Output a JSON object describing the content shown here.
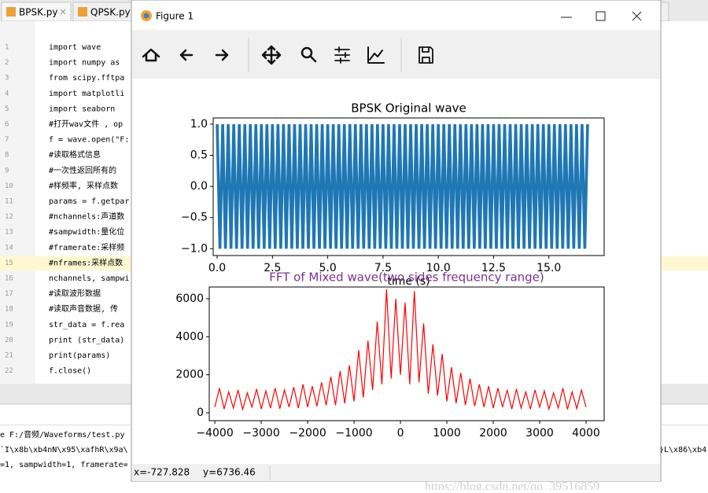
{
  "ide": {
    "tabs": [
      "BPSK.py",
      "QPSK.py"
    ],
    "code_lines": [
      {
        "number": "1",
        "text": "import wave"
      },
      {
        "number": "2",
        "text": "import numpy as"
      },
      {
        "number": "3",
        "text": "from scipy.fftpa"
      },
      {
        "number": "4",
        "text": "import matplotli"
      },
      {
        "number": "5",
        "text": "import seaborn"
      },
      {
        "number": "6",
        "text": "#打开wav文件 , op"
      },
      {
        "number": "7",
        "text": "f = wave.open(\"F:"
      },
      {
        "number": "8",
        "text": "#读取格式信息"
      },
      {
        "number": "9",
        "text": "#一次性返回所有的"
      },
      {
        "number": "10",
        "text": "#样频率, 采样点数"
      },
      {
        "number": "11",
        "text": "params = f.getpar"
      },
      {
        "number": "12",
        "text": "#nchannels:声道数"
      },
      {
        "number": "13",
        "text": "#sampwidth:量化位"
      },
      {
        "number": "14",
        "text": "#framerate:采样频"
      },
      {
        "number": "15",
        "text": "#nframes:采样点数"
      },
      {
        "number": "16",
        "text": "nchannels, sampwi"
      },
      {
        "number": "17",
        "text": "#读取波形数据"
      },
      {
        "number": "18",
        "text": "#读取声音数据, 传"
      },
      {
        "number": "19",
        "text": "str_data = f.rea"
      },
      {
        "number": "20",
        "text": "print (str_data)"
      },
      {
        "number": "21",
        "text": "print(params)"
      },
      {
        "number": "22",
        "text": "f.close()"
      }
    ],
    "console_lines": [
      "e F:/音频/Waveforms/test.py",
      "`I\\x8b\\xb4nN\\x95\\xafhR\\x9a\\",
      "=1, sampwidth=1, framerate="
    ],
    "console_right": "}L\\x86\\xb4",
    "watermark": "https://blog.csdn.net/qq_39516859"
  },
  "figure": {
    "title": "Figure 1",
    "status_x": "x=-727.828",
    "status_y": "y=6736.46"
  },
  "chart_data": [
    {
      "type": "line",
      "title": "BPSK Original wave",
      "x_label": "time (s)",
      "color": "#1f77b4",
      "xlim": [
        -0.18,
        17.5
      ],
      "ylim": [
        -1.11,
        1.1
      ],
      "xticks": [
        {
          "value": 0,
          "label": "0.0"
        },
        {
          "value": 2.5,
          "label": "2.5"
        },
        {
          "value": 5,
          "label": "5.0"
        },
        {
          "value": 7.5,
          "label": "7.5"
        },
        {
          "value": 10,
          "label": "10.0"
        },
        {
          "value": 12.5,
          "label": "12.5"
        },
        {
          "value": 15,
          "label": "15.0"
        }
      ],
      "yticks": [
        {
          "value": 1,
          "label": "1.0"
        },
        {
          "value": 0.5,
          "label": "0.5"
        },
        {
          "value": 0,
          "label": "0.0"
        },
        {
          "value": -0.5,
          "label": "−0.5"
        },
        {
          "value": -1,
          "label": "−1.0"
        }
      ],
      "x": [
        0,
        0.125,
        0.25,
        0.375,
        0.5,
        0.625,
        0.75,
        0.875,
        1,
        1.125,
        1.25,
        1.375,
        1.5,
        1.625,
        1.75,
        1.875,
        2,
        2.125,
        2.25,
        2.375,
        2.5,
        2.625,
        2.75,
        2.875,
        3,
        3.125,
        3.25,
        3.375,
        3.5,
        3.625,
        3.75,
        3.875,
        4,
        4.125,
        4.25,
        4.375,
        4.5,
        4.625,
        4.75,
        4.875,
        5,
        5.125,
        5.25,
        5.375,
        5.5,
        5.625,
        5.75,
        5.875,
        6,
        6.125,
        6.25,
        6.375,
        6.5,
        6.625,
        6.75,
        6.875,
        7,
        7.125,
        7.25,
        7.375,
        7.5,
        7.625,
        7.75,
        7.875,
        8,
        8.125,
        8.25,
        8.375,
        8.5,
        8.625,
        8.75,
        8.875,
        9,
        9.125,
        9.25,
        9.375,
        9.5,
        9.625,
        9.75,
        9.875,
        10,
        10.125,
        10.25,
        10.375,
        10.5,
        10.625,
        10.75,
        10.875,
        11,
        11.125,
        11.25,
        11.375,
        11.5,
        11.625,
        11.75,
        11.875,
        12,
        12.125,
        12.25,
        12.375,
        12.5,
        12.625,
        12.75,
        12.875,
        13,
        13.125,
        13.25,
        13.375,
        13.5,
        13.625,
        13.75,
        13.875,
        14,
        14.125,
        14.25,
        14.375,
        14.5,
        14.625,
        14.75,
        14.875,
        15,
        15.125,
        15.25,
        15.375,
        15.5,
        15.625,
        15.75,
        15.875,
        16,
        16.125,
        16.25,
        16.375,
        16.5,
        16.625,
        16.75
      ],
      "values": [
        1,
        -1,
        1,
        -1,
        1,
        -1,
        1,
        -1,
        1,
        -1,
        1,
        -1,
        1,
        -1,
        1,
        -1,
        1,
        -1,
        1,
        -1,
        1,
        -1,
        1,
        -1,
        1,
        -1,
        1,
        -1,
        1,
        -1,
        1,
        -1,
        1,
        -1,
        1,
        -1,
        1,
        -1,
        1,
        -1,
        1,
        -1,
        1,
        -1,
        1,
        -1,
        1,
        -1,
        1,
        -1,
        1,
        -1,
        1,
        -1,
        1,
        -1,
        1,
        -1,
        1,
        -1,
        1,
        -1,
        1,
        -1,
        1,
        -1,
        1,
        -1,
        1,
        -1,
        1,
        -1,
        1,
        -1,
        1,
        -1,
        1,
        -1,
        1,
        -1,
        1,
        -1,
        1,
        -1,
        1,
        -1,
        1,
        -1,
        1,
        -1,
        1,
        -1,
        1,
        -1,
        1,
        -1,
        1,
        -1,
        1,
        -1,
        1,
        -1,
        1,
        -1,
        1,
        -1,
        1,
        -1,
        1,
        -1,
        1,
        -1,
        1,
        -1,
        1,
        -1,
        1,
        -1,
        1,
        -1,
        1,
        -1,
        1,
        -1,
        1,
        -1,
        1,
        -1,
        1,
        -1,
        1,
        -1,
        1,
        -1,
        1
      ]
    },
    {
      "type": "line",
      "title": "FFT of Mixed wave(two sides frequency range)",
      "title_color": "#7b3294",
      "color": "#ff0000",
      "xlim": [
        -4120,
        4390
      ],
      "ylim": [
        -414,
        6620
      ],
      "xticks": [
        {
          "value": -4000,
          "label": "−4000"
        },
        {
          "value": -3000,
          "label": "−3000"
        },
        {
          "value": -2000,
          "label": "−2000"
        },
        {
          "value": -1000,
          "label": "−1000"
        },
        0,
        1000,
        2000,
        3000,
        4000
      ],
      "yticks": [
        0,
        2000,
        4000,
        6000
      ],
      "x": [
        -4000,
        -3900,
        -3800,
        -3700,
        -3600,
        -3500,
        -3400,
        -3300,
        -3200,
        -3100,
        -3000,
        -2900,
        -2800,
        -2700,
        -2600,
        -2500,
        -2400,
        -2300,
        -2200,
        -2100,
        -2000,
        -1900,
        -1800,
        -1700,
        -1600,
        -1500,
        -1400,
        -1300,
        -1200,
        -1100,
        -1000,
        -900,
        -800,
        -700,
        -600,
        -500,
        -400,
        -300,
        -200,
        -100,
        0,
        100,
        200,
        300,
        400,
        500,
        600,
        700,
        800,
        900,
        1000,
        1100,
        1200,
        1300,
        1400,
        1500,
        1600,
        1700,
        1800,
        1900,
        2000,
        2100,
        2200,
        2300,
        2400,
        2500,
        2600,
        2700,
        2800,
        2900,
        3000,
        3100,
        3200,
        3300,
        3400,
        3500,
        3600,
        3700,
        3800,
        3900,
        4000
      ],
      "values": [
        300,
        1300,
        200,
        1100,
        250,
        1200,
        180,
        1050,
        300,
        1250,
        200,
        1150,
        250,
        1300,
        220,
        1200,
        300,
        1350,
        250,
        1500,
        300,
        1400,
        350,
        1600,
        400,
        1900,
        400,
        2200,
        500,
        2500,
        600,
        3300,
        800,
        3800,
        1200,
        4800,
        1500,
        6500,
        1800,
        6000,
        2000,
        5800,
        1500,
        6400,
        1600,
        4700,
        1000,
        3600,
        900,
        3100,
        600,
        2400,
        500,
        2100,
        400,
        1800,
        350,
        1500,
        300,
        1400,
        250,
        1300,
        300,
        1200,
        200,
        1250,
        250,
        1100,
        200,
        1200,
        300,
        1150,
        200,
        1050,
        250,
        1300,
        180,
        1100,
        220,
        1200,
        300
      ]
    }
  ]
}
